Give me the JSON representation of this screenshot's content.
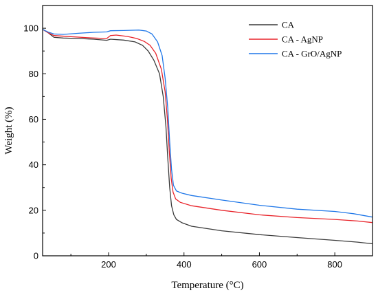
{
  "chart_data": {
    "type": "line",
    "title": "",
    "xlabel": "Temperature (°C)",
    "ylabel": "Weight (%)",
    "xlim": [
      25,
      900
    ],
    "ylim": [
      0,
      110
    ],
    "xticks": [
      200,
      400,
      600,
      800
    ],
    "yticks": [
      0,
      20,
      40,
      60,
      80,
      100
    ],
    "grid": false,
    "legend_position": "top-right",
    "series": [
      {
        "name": "CA",
        "color": "#3a3a3a",
        "points": [
          [
            25,
            99.5
          ],
          [
            40,
            98
          ],
          [
            55,
            96
          ],
          [
            80,
            95.7
          ],
          [
            120,
            95.5
          ],
          [
            160,
            95.2
          ],
          [
            195,
            94.7
          ],
          [
            205,
            95.2
          ],
          [
            240,
            94.8
          ],
          [
            270,
            94
          ],
          [
            290,
            92.5
          ],
          [
            305,
            90
          ],
          [
            320,
            86
          ],
          [
            335,
            80
          ],
          [
            345,
            70
          ],
          [
            352,
            57
          ],
          [
            357,
            43
          ],
          [
            362,
            30
          ],
          [
            367,
            22
          ],
          [
            373,
            18
          ],
          [
            380,
            16
          ],
          [
            395,
            14.5
          ],
          [
            420,
            13
          ],
          [
            500,
            11
          ],
          [
            600,
            9.3
          ],
          [
            700,
            8
          ],
          [
            800,
            6.8
          ],
          [
            860,
            6
          ],
          [
            900,
            5.3
          ]
        ]
      },
      {
        "name": "CA - AgNP",
        "color": "#e8232a",
        "points": [
          [
            25,
            99.5
          ],
          [
            40,
            98
          ],
          [
            55,
            96.8
          ],
          [
            100,
            96.3
          ],
          [
            150,
            95.8
          ],
          [
            195,
            95.5
          ],
          [
            205,
            96.8
          ],
          [
            220,
            97
          ],
          [
            250,
            96.4
          ],
          [
            275,
            95.5
          ],
          [
            295,
            94.2
          ],
          [
            310,
            92.5
          ],
          [
            325,
            89
          ],
          [
            340,
            82
          ],
          [
            350,
            72
          ],
          [
            356,
            60
          ],
          [
            361,
            46
          ],
          [
            366,
            34
          ],
          [
            371,
            28
          ],
          [
            378,
            25
          ],
          [
            390,
            23.5
          ],
          [
            420,
            22
          ],
          [
            500,
            20
          ],
          [
            600,
            18
          ],
          [
            700,
            16.8
          ],
          [
            800,
            16
          ],
          [
            860,
            15.3
          ],
          [
            900,
            14.6
          ]
        ]
      },
      {
        "name": "CA - GrO/AgNP",
        "color": "#1f77e8",
        "points": [
          [
            25,
            99.5
          ],
          [
            40,
            98.3
          ],
          [
            55,
            97.5
          ],
          [
            80,
            97.3
          ],
          [
            120,
            97.8
          ],
          [
            160,
            98.2
          ],
          [
            195,
            98.4
          ],
          [
            205,
            98.9
          ],
          [
            240,
            99
          ],
          [
            280,
            99.2
          ],
          [
            300,
            98.8
          ],
          [
            315,
            97.5
          ],
          [
            330,
            94
          ],
          [
            342,
            88
          ],
          [
            350,
            78
          ],
          [
            357,
            65
          ],
          [
            362,
            50
          ],
          [
            367,
            38
          ],
          [
            372,
            31
          ],
          [
            380,
            28.5
          ],
          [
            395,
            27.5
          ],
          [
            420,
            26.5
          ],
          [
            500,
            24.5
          ],
          [
            600,
            22.2
          ],
          [
            700,
            20.5
          ],
          [
            800,
            19.5
          ],
          [
            850,
            18.5
          ],
          [
            900,
            17
          ]
        ]
      }
    ]
  }
}
